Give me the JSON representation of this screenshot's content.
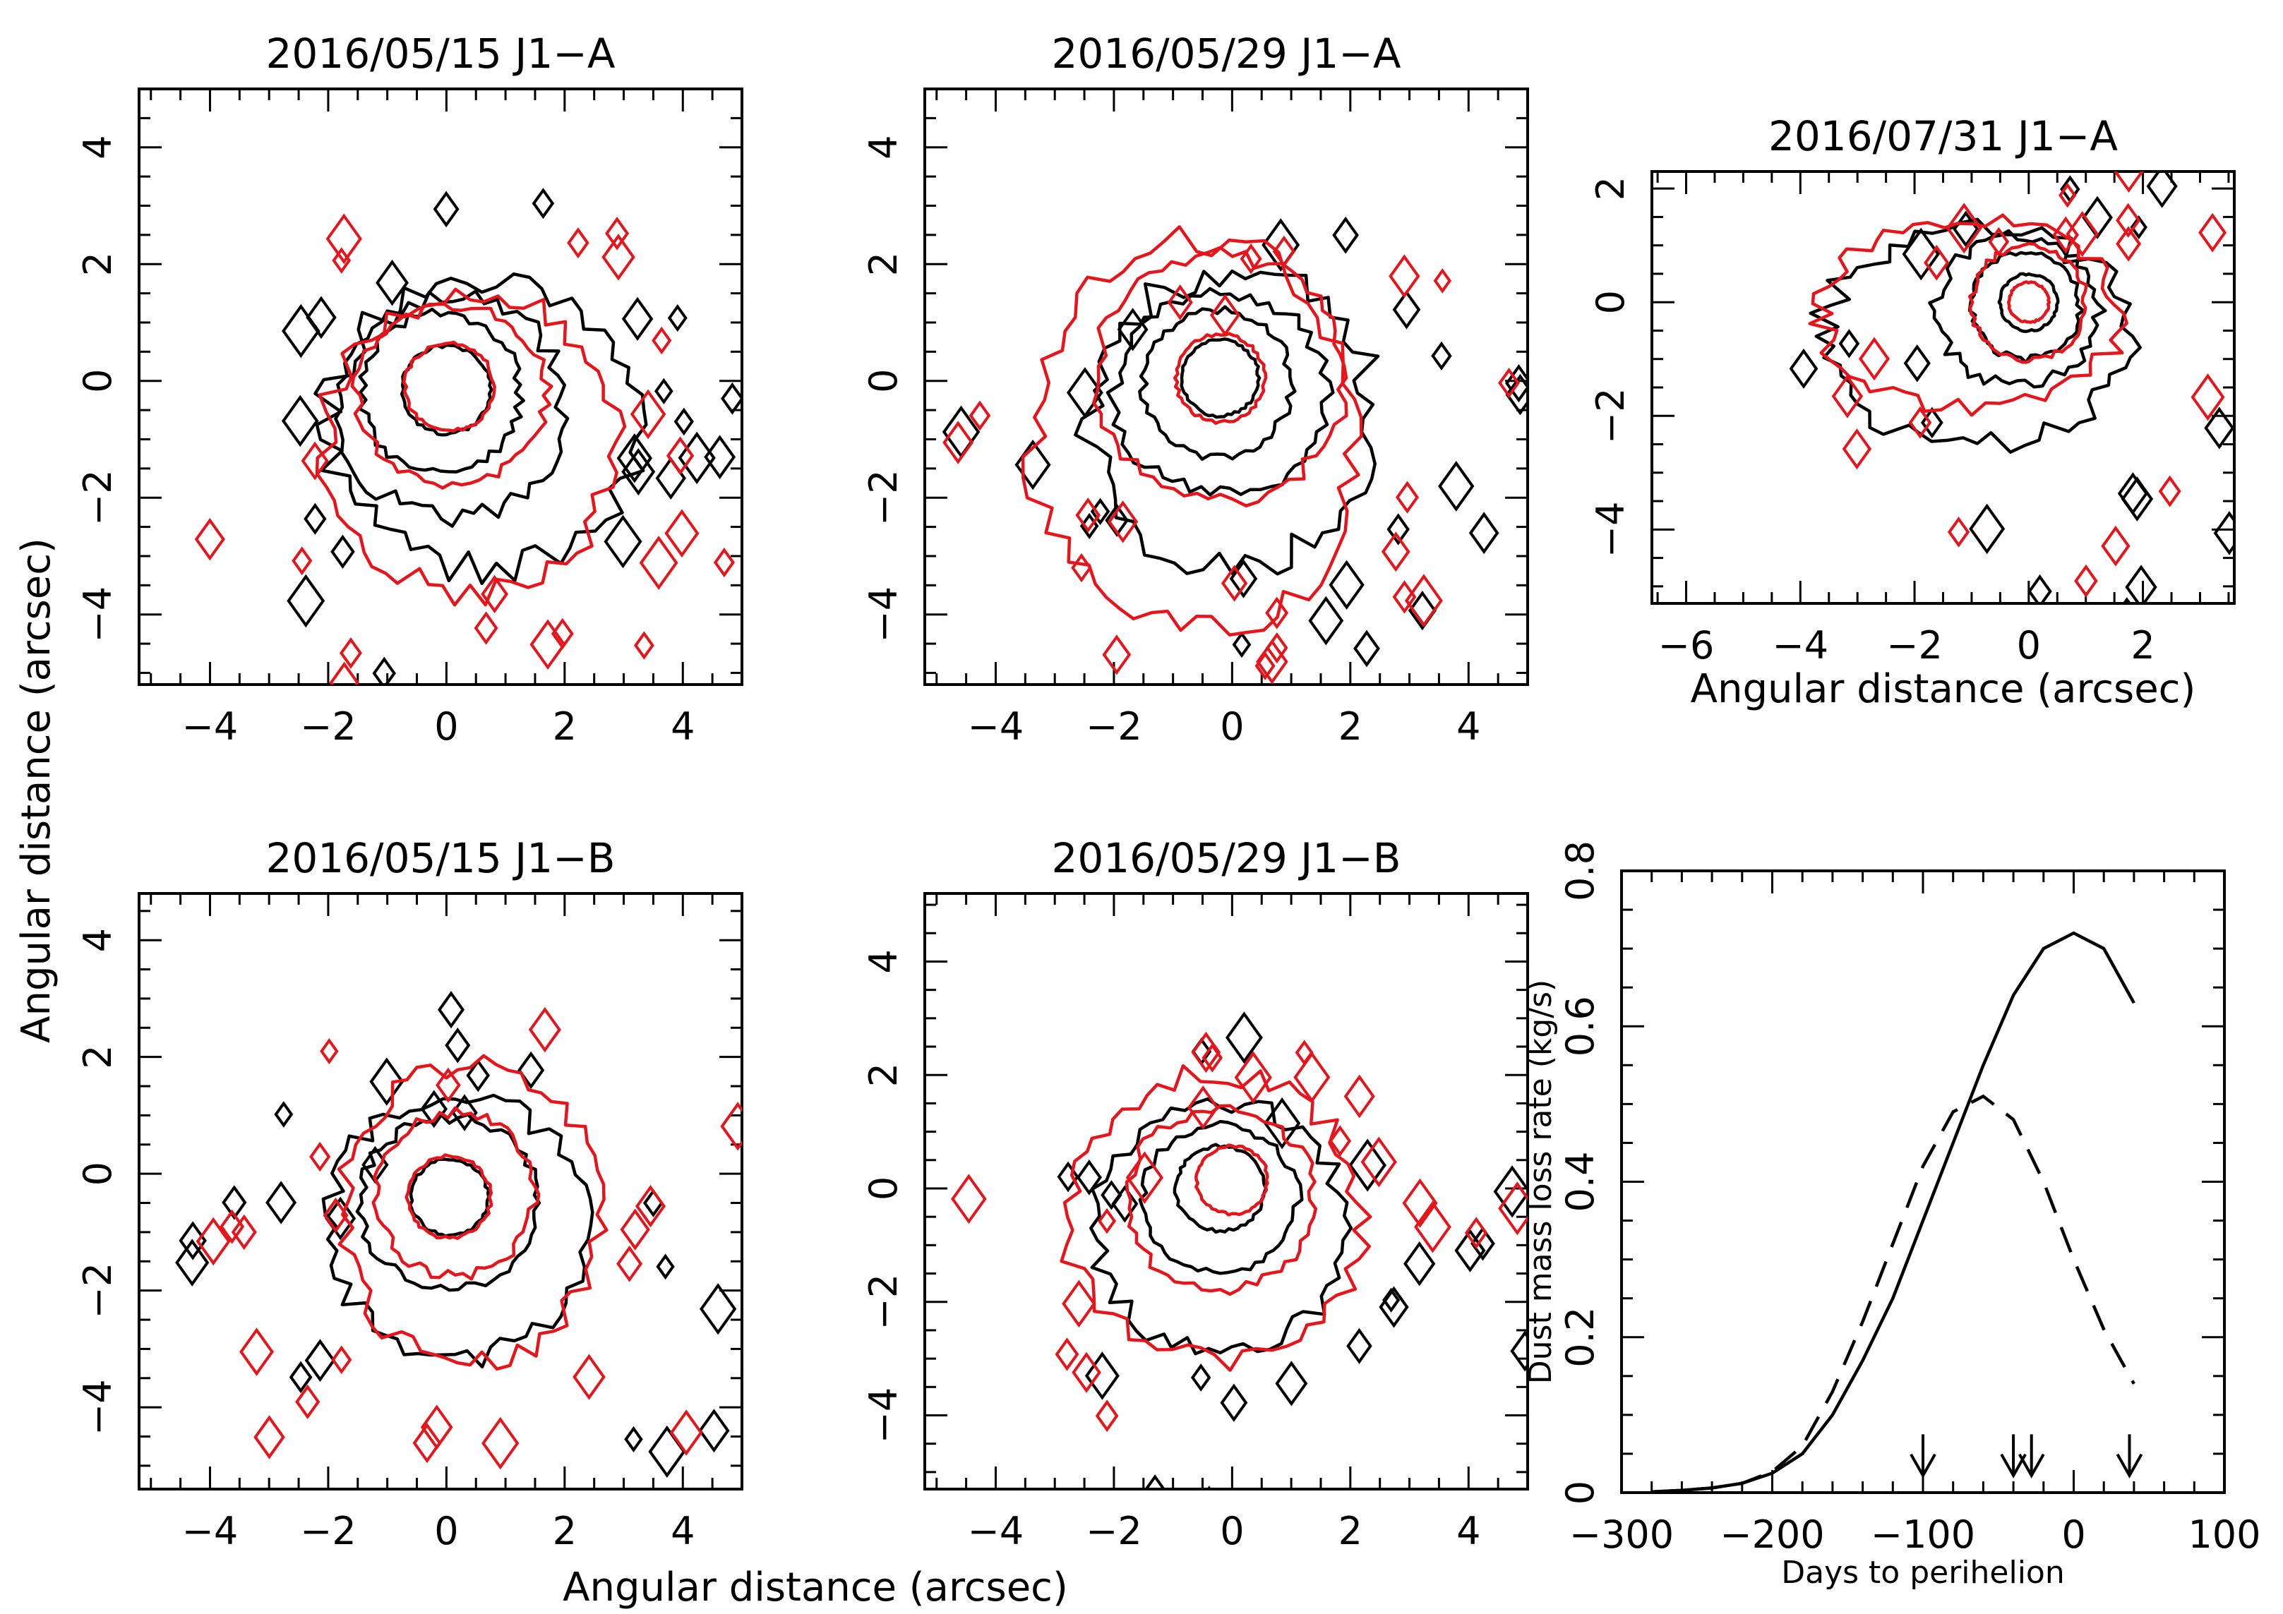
{
  "figure": {
    "ylabel": "Angular distance (arcsec)",
    "xlabel": "Angular distance (arcsec)"
  },
  "chart_data": [
    {
      "type": "contour",
      "title": "2016/05/15 J1−A",
      "xlim": [
        -5.2,
        5.0
      ],
      "ylim": [
        -5.2,
        5.0
      ],
      "xticks": [
        -4,
        -2,
        0,
        2,
        4
      ],
      "yticks": [
        -4,
        -2,
        0,
        2,
        4
      ],
      "xtick_labels_shown": true,
      "ytick_labels_shown": true,
      "xlabel": "",
      "ylabel": "",
      "center": [
        0.0,
        -0.15
      ],
      "series": [
        {
          "color": "#000000",
          "contours": [
            {
              "radius": 0.75,
              "dx": 0,
              "dy": 0,
              "sx": 1.0,
              "sy": 1.0
            },
            {
              "radius": 1.35,
              "dx": -0.1,
              "dy": -0.05,
              "sx": 1.0,
              "sy": 1.0
            },
            {
              "radius": 1.8,
              "dx": 0.1,
              "dy": -0.3,
              "sx": 1.05,
              "sy": 1.05
            },
            {
              "radius": 2.6,
              "dx": 0.6,
              "dy": -0.6,
              "sx": 1.0,
              "sy": 0.95
            }
          ]
        },
        {
          "color": "#e8141c",
          "contours": [
            {
              "radius": 0.75,
              "dx": 0.05,
              "dy": 0.05,
              "sx": 1.0,
              "sy": 1.0
            },
            {
              "radius": 1.6,
              "dx": 0.1,
              "dy": -0.1,
              "sx": 1.0,
              "sy": 0.95
            },
            {
              "radius": 2.45,
              "dx": 0.4,
              "dy": -0.9,
              "sx": 1.0,
              "sy": 1.05
            }
          ]
        }
      ]
    },
    {
      "type": "contour",
      "title": "2016/05/29 J1−A",
      "xlim": [
        -5.2,
        5.0
      ],
      "ylim": [
        -5.2,
        5.0
      ],
      "xticks": [
        -4,
        -2,
        0,
        2,
        4
      ],
      "yticks": [
        -4,
        -2,
        0,
        2,
        4
      ],
      "xtick_labels_shown": true,
      "ytick_labels_shown": true,
      "xlabel": "",
      "ylabel": "",
      "center": [
        -0.2,
        0.05
      ],
      "series": [
        {
          "color": "#000000",
          "contours": [
            {
              "radius": 0.65,
              "dx": 0,
              "dy": 0,
              "sx": 1.0,
              "sy": 1.0
            },
            {
              "radius": 1.25,
              "dx": -0.05,
              "dy": -0.1,
              "sx": 1.0,
              "sy": 1.0
            },
            {
              "radius": 1.75,
              "dx": 0.0,
              "dy": -0.25,
              "sx": 1.0,
              "sy": 1.0
            },
            {
              "radius": 2.4,
              "dx": 0.2,
              "dy": -0.7,
              "sx": 1.0,
              "sy": 1.05
            }
          ]
        },
        {
          "color": "#e8141c",
          "contours": [
            {
              "radius": 0.75,
              "dx": 0.0,
              "dy": 0.0,
              "sx": 1.0,
              "sy": 1.0
            },
            {
              "radius": 2.1,
              "dx": 0.0,
              "dy": 0.0,
              "sx": 1.0,
              "sy": 1.0
            },
            {
              "radius": 2.9,
              "dx": -0.4,
              "dy": -1.0,
              "sx": 0.95,
              "sy": 1.15
            }
          ]
        }
      ]
    },
    {
      "type": "contour",
      "title": "2016/07/31 J1−A",
      "xlim": [
        -6.6,
        3.6
      ],
      "ylim": [
        -5.3,
        2.3
      ],
      "xticks": [
        -6,
        -4,
        -2,
        0,
        2
      ],
      "yticks": [
        -4,
        -2,
        0,
        2
      ],
      "xtick_labels_shown": true,
      "ytick_labels_shown": true,
      "xlabel": "Angular distance (arcsec)",
      "ylabel": "",
      "center": [
        0.0,
        0.0
      ],
      "series": [
        {
          "color": "#000000",
          "contours": [
            {
              "radius": 0.5,
              "dx": 0,
              "dy": 0,
              "sx": 1.0,
              "sy": 1.0
            },
            {
              "radius": 0.95,
              "dx": -0.05,
              "dy": -0.05,
              "sx": 1.0,
              "sy": 1.0
            },
            {
              "radius": 1.3,
              "dx": -0.2,
              "dy": -0.15,
              "sx": 1.1,
              "sy": 1.0
            },
            {
              "radius": 1.8,
              "dx": -0.9,
              "dy": -0.6,
              "sx": 1.5,
              "sy": 1.05
            }
          ]
        },
        {
          "color": "#e8141c",
          "contours": [
            {
              "radius": 0.35,
              "dx": 0.0,
              "dy": 0.0,
              "sx": 1.0,
              "sy": 1.0
            },
            {
              "radius": 1.0,
              "dx": 0.0,
              "dy": 0.0,
              "sx": 1.0,
              "sy": 1.0
            },
            {
              "radius": 1.75,
              "dx": -1.0,
              "dy": -0.2,
              "sx": 1.5,
              "sy": 0.95
            }
          ]
        }
      ]
    },
    {
      "type": "contour",
      "title": "2016/05/15 J1−B",
      "xlim": [
        -5.2,
        5.0
      ],
      "ylim": [
        -5.4,
        4.8
      ],
      "xticks": [
        -4,
        -2,
        0,
        2,
        4
      ],
      "yticks": [
        -4,
        -2,
        0,
        2,
        4
      ],
      "xtick_labels_shown": true,
      "ytick_labels_shown": true,
      "xlabel": "",
      "ylabel": "",
      "center": [
        0.05,
        -0.4
      ],
      "series": [
        {
          "color": "#000000",
          "contours": [
            {
              "radius": 0.65,
              "dx": 0,
              "dy": 0,
              "sx": 1.0,
              "sy": 1.0
            },
            {
              "radius": 1.45,
              "dx": 0.0,
              "dy": -0.1,
              "sx": 1.05,
              "sy": 1.0
            },
            {
              "radius": 2.15,
              "dx": 0.1,
              "dy": -0.5,
              "sx": 1.0,
              "sy": 1.05
            }
          ]
        },
        {
          "color": "#e8141c",
          "contours": [
            {
              "radius": 0.7,
              "dx": 0.0,
              "dy": 0.0,
              "sx": 1.0,
              "sy": 1.0
            },
            {
              "radius": 1.4,
              "dx": 0.1,
              "dy": 0.05,
              "sx": 0.95,
              "sy": 1.0
            },
            {
              "radius": 2.3,
              "dx": 0.35,
              "dy": -0.3,
              "sx": 0.95,
              "sy": 1.1
            }
          ]
        }
      ]
    },
    {
      "type": "contour",
      "title": "2016/05/29 J1−B",
      "xlim": [
        -5.2,
        5.0
      ],
      "ylim": [
        -5.3,
        5.2
      ],
      "xticks": [
        -4,
        -2,
        0,
        2,
        4
      ],
      "yticks": [
        -4,
        -2,
        0,
        2,
        4
      ],
      "xtick_labels_shown": true,
      "ytick_labels_shown": true,
      "xlabel": "",
      "ylabel": "",
      "center": [
        -0.2,
        0.0
      ],
      "series": [
        {
          "color": "#000000",
          "contours": [
            {
              "radius": 0.75,
              "dx": 0,
              "dy": 0,
              "sx": 1.0,
              "sy": 1.0
            },
            {
              "radius": 1.3,
              "dx": 0.0,
              "dy": -0.2,
              "sx": 1.0,
              "sy": 1.0
            },
            {
              "radius": 2.1,
              "dx": 0.0,
              "dy": -0.7,
              "sx": 1.0,
              "sy": 1.05
            }
          ]
        },
        {
          "color": "#e8141c",
          "contours": [
            {
              "radius": 0.6,
              "dx": 0.2,
              "dy": 0.15,
              "sx": 1.0,
              "sy": 1.0
            },
            {
              "radius": 1.6,
              "dx": 0.0,
              "dy": -0.2,
              "sx": 1.0,
              "sy": 1.0
            },
            {
              "radius": 2.5,
              "dx": -0.1,
              "dy": -0.5,
              "sx": 1.0,
              "sy": 1.0
            }
          ]
        }
      ]
    },
    {
      "type": "line",
      "title": "",
      "xlabel": "Days to perihelion",
      "ylabel": "Dust mass loss rate (kg/s)",
      "xlim": [
        -300,
        100
      ],
      "ylim": [
        0,
        0.8
      ],
      "xticks": [
        -300,
        -200,
        -100,
        0,
        100
      ],
      "yticks": [
        0,
        0.2,
        0.4,
        0.6,
        0.8
      ],
      "series": [
        {
          "style": "solid",
          "x": [
            -280,
            -260,
            -240,
            -220,
            -200,
            -180,
            -160,
            -140,
            -120,
            -100,
            -80,
            -60,
            -40,
            -20,
            0,
            20,
            40
          ],
          "y": [
            0.001,
            0.003,
            0.006,
            0.012,
            0.025,
            0.05,
            0.1,
            0.17,
            0.25,
            0.35,
            0.45,
            0.55,
            0.64,
            0.7,
            0.72,
            0.7,
            0.63
          ]
        },
        {
          "style": "dashed",
          "x": [
            -280,
            -260,
            -240,
            -220,
            -200,
            -180,
            -160,
            -140,
            -120,
            -100,
            -80,
            -60,
            -40,
            -20,
            0,
            20,
            40
          ],
          "y": [
            0.001,
            0.003,
            0.006,
            0.012,
            0.027,
            0.06,
            0.13,
            0.22,
            0.32,
            0.42,
            0.49,
            0.51,
            0.48,
            0.4,
            0.3,
            0.21,
            0.14
          ]
        }
      ],
      "arrows_x": [
        -100,
        -40,
        -28,
        37
      ]
    }
  ]
}
